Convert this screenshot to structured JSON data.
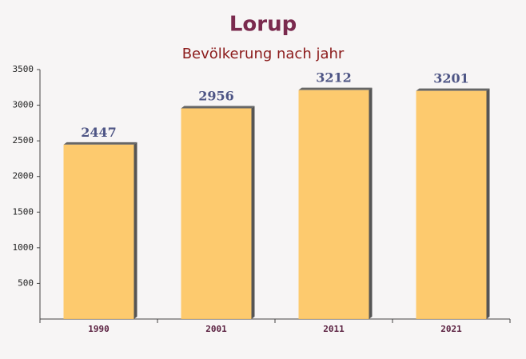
{
  "chart_data": {
    "type": "bar",
    "title": "Lorup",
    "subtitle": "Bevölkerung nach jahr",
    "categories": [
      "1990",
      "2001",
      "2011",
      "2021"
    ],
    "values": [
      2447,
      2956,
      3212,
      3201
    ],
    "color": "#fdc55f",
    "ylim": [
      0,
      3500
    ],
    "yticks": [
      500,
      1000,
      1500,
      2000,
      2500,
      3000,
      3500
    ]
  }
}
